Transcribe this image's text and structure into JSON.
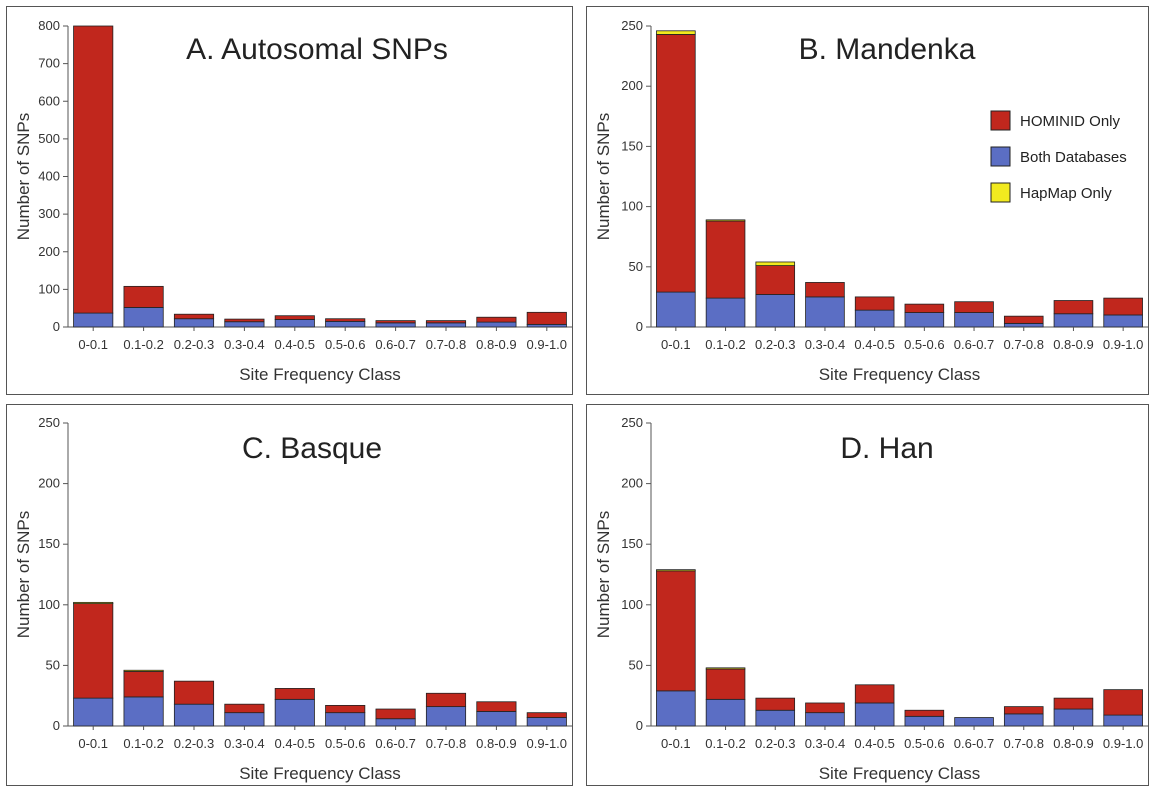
{
  "legend": {
    "entries": [
      {
        "label": "HOMINID Only",
        "color": "#c1271d"
      },
      {
        "label": "Both Databases",
        "color": "#5b6ec4"
      },
      {
        "label": "HapMap Only",
        "color": "#f2ea1f"
      }
    ],
    "placement": "right, panel B"
  },
  "chart_data": [
    {
      "type": "bar",
      "stacked": true,
      "title": "A. Autosomal SNPs",
      "xlabel": "Site Frequency Class",
      "ylabel": "Number of SNPs",
      "ylim": [
        0,
        800
      ],
      "yticks": [
        0,
        100,
        200,
        300,
        400,
        500,
        600,
        700,
        800
      ],
      "categories": [
        "0-0.1",
        "0.1-0.2",
        "0.2-0.3",
        "0.3-0.4",
        "0.4-0.5",
        "0.5-0.6",
        "0.6-0.7",
        "0.7-0.8",
        "0.8-0.9",
        "0.9-1.0"
      ],
      "series": [
        {
          "name": "Both Databases",
          "values": [
            37,
            52,
            22,
            14,
            20,
            15,
            11,
            11,
            13,
            7
          ]
        },
        {
          "name": "HOMINID Only",
          "values": [
            763,
            56,
            12,
            7,
            10,
            7,
            6,
            6,
            13,
            32
          ]
        },
        {
          "name": "HapMap Only",
          "values": [
            0,
            0,
            0,
            0,
            0,
            0,
            0,
            0,
            0,
            0
          ]
        }
      ]
    },
    {
      "type": "bar",
      "stacked": true,
      "title": "B. Mandenka",
      "xlabel": "Site Frequency Class",
      "ylabel": "Number of SNPs",
      "ylim": [
        0,
        250
      ],
      "yticks": [
        0,
        50,
        100,
        150,
        200,
        250
      ],
      "categories": [
        "0-0.1",
        "0.1-0.2",
        "0.2-0.3",
        "0.3-0.4",
        "0.4-0.5",
        "0.5-0.6",
        "0.6-0.7",
        "0.7-0.8",
        "0.8-0.9",
        "0.9-1.0"
      ],
      "series": [
        {
          "name": "Both Databases",
          "values": [
            29,
            24,
            27,
            25,
            14,
            12,
            12,
            3,
            11,
            10
          ]
        },
        {
          "name": "HOMINID Only",
          "values": [
            214,
            64,
            24,
            12,
            11,
            7,
            9,
            6,
            11,
            14
          ]
        },
        {
          "name": "HapMap Only",
          "values": [
            3,
            1,
            3,
            0,
            0,
            0,
            0,
            0,
            0,
            0
          ]
        }
      ]
    },
    {
      "type": "bar",
      "stacked": true,
      "title": "C. Basque",
      "xlabel": "Site Frequency Class",
      "ylabel": "Number of SNPs",
      "ylim": [
        0,
        250
      ],
      "yticks": [
        0,
        50,
        100,
        150,
        200,
        250
      ],
      "categories": [
        "0-0.1",
        "0.1-0.2",
        "0.2-0.3",
        "0.3-0.4",
        "0.4-0.5",
        "0.5-0.6",
        "0.6-0.7",
        "0.7-0.8",
        "0.8-0.9",
        "0.9-1.0"
      ],
      "series": [
        {
          "name": "Both Databases",
          "values": [
            23,
            24,
            18,
            11,
            22,
            11,
            6,
            16,
            12,
            7
          ]
        },
        {
          "name": "HOMINID Only",
          "values": [
            78,
            21,
            19,
            7,
            9,
            6,
            8,
            11,
            8,
            4
          ]
        },
        {
          "name": "HapMap Only",
          "values": [
            1,
            1,
            0,
            0,
            0,
            0,
            0,
            0,
            0,
            0
          ]
        }
      ]
    },
    {
      "type": "bar",
      "stacked": true,
      "title": "D.  Han",
      "xlabel": "Site Frequency Class",
      "ylabel": "Number of SNPs",
      "ylim": [
        0,
        250
      ],
      "yticks": [
        0,
        50,
        100,
        150,
        200,
        250
      ],
      "categories": [
        "0-0.1",
        "0.1-0.2",
        "0.2-0.3",
        "0.3-0.4",
        "0.4-0.5",
        "0.5-0.6",
        "0.6-0.7",
        "0.7-0.8",
        "0.8-0.9",
        "0.9-1.0"
      ],
      "series": [
        {
          "name": "Both Databases",
          "values": [
            29,
            22,
            13,
            11,
            19,
            8,
            7,
            10,
            14,
            9
          ]
        },
        {
          "name": "HOMINID Only",
          "values": [
            99,
            25,
            10,
            8,
            15,
            5,
            0,
            6,
            9,
            21
          ]
        },
        {
          "name": "HapMap Only",
          "values": [
            1,
            1,
            0,
            0,
            0,
            0,
            0,
            0,
            0,
            0
          ]
        }
      ]
    }
  ]
}
